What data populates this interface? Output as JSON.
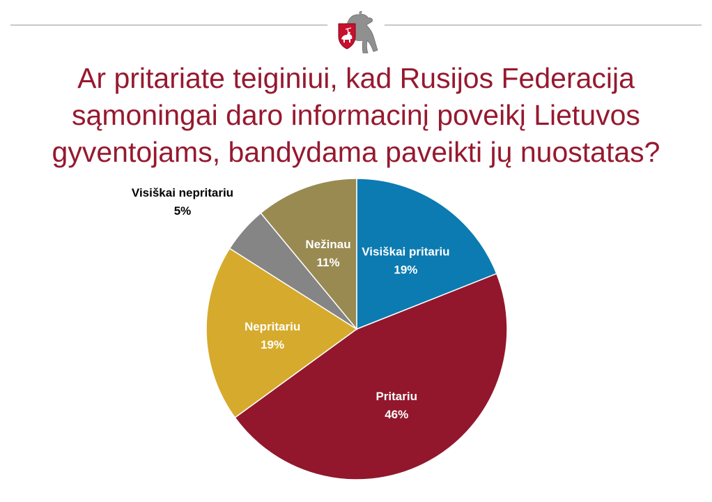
{
  "title_lines": [
    "Ar pritariate teiginiui, kad Rusijos Federacija",
    "sąmoningai daro informacinį poveikį Lietuvos",
    "gyventojams, bandydama paveikti jų nuostatas?"
  ],
  "colors": {
    "title": "#96192f",
    "rule": "#c8c8c8"
  },
  "emblem": {
    "icon": "vytis-coat-of-arms-icon"
  },
  "chart_data": {
    "type": "pie",
    "title": "Ar pritariate teiginiui, kad Rusijos Federacija sąmoningai daro informacinį poveikį Lietuvos gyventojams, bandydama paveikti jų nuostatas?",
    "start": "12 o'clock, clockwise",
    "slices": [
      {
        "label": "Visiškai pritariu",
        "value": 19,
        "display": "19%",
        "color": "#0b7bb1",
        "label_color": "#ffffff",
        "label_position": "inside"
      },
      {
        "label": "Pritariu",
        "value": 46,
        "display": "46%",
        "color": "#92172c",
        "label_color": "#ffffff",
        "label_position": "inside"
      },
      {
        "label": "Nepritariu",
        "value": 19,
        "display": "19%",
        "color": "#d6aa2c",
        "label_color": "#ffffff",
        "label_position": "inside"
      },
      {
        "label": "Visiškai nepritariu",
        "value": 5,
        "display": "5%",
        "color": "#858585",
        "label_color": "#000000",
        "label_position": "outside"
      },
      {
        "label": "Nežinau",
        "value": 11,
        "display": "11%",
        "color": "#998a52",
        "label_color": "#ffffff",
        "label_position": "inside"
      }
    ]
  }
}
